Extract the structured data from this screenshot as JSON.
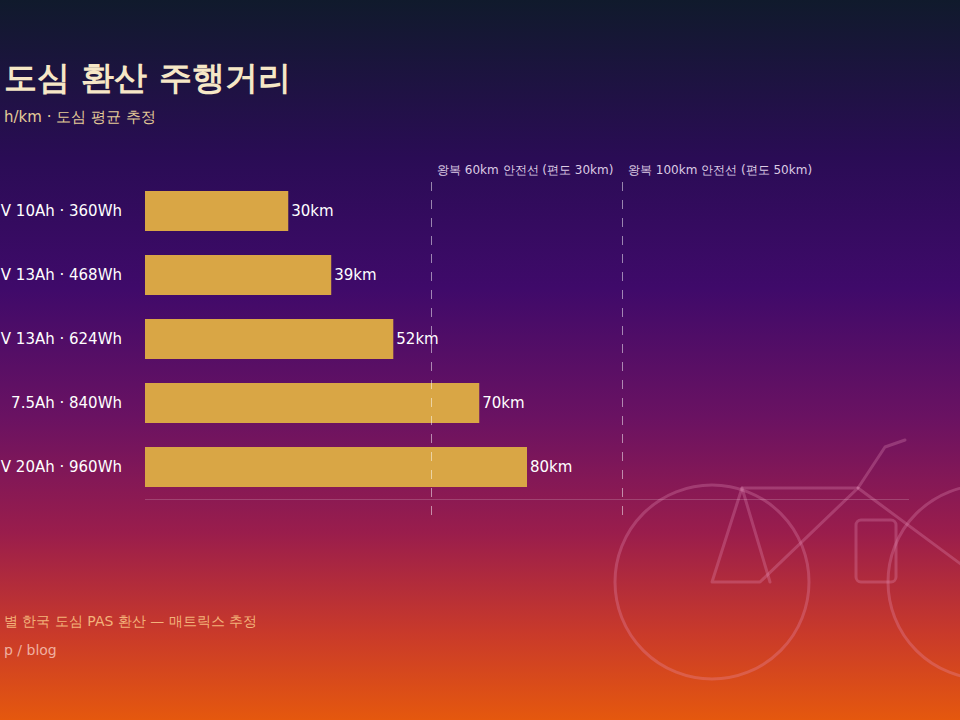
{
  "chart_data": {
    "type": "bar",
    "orientation": "horizontal",
    "title": "도심 환산 주행거리",
    "subtitle": "h/km · 도심 평균 추정",
    "categories": [
      "V 10Ah · 360Wh",
      "V 13Ah · 468Wh",
      "V 13Ah · 624Wh",
      "7.5Ah · 840Wh",
      "V 20Ah · 960Wh"
    ],
    "values": [
      30,
      39,
      52,
      70,
      80
    ],
    "value_labels": [
      "30km",
      "39km",
      "52km",
      "70km",
      "80km"
    ],
    "data_labels": true,
    "color": "#d9a645",
    "xlim": [
      0,
      160
    ],
    "tick_labels": "y",
    "grid": false,
    "reference_lines": [
      {
        "x": 60,
        "text": "왕복 60km 안전선 (편도 30km)"
      },
      {
        "x": 100,
        "text": "왕복 100km 안전선 (편도 50km)"
      }
    ],
    "footer": [
      "별 한국 도심 PAS 환산 — 매트릭스 추정",
      "p / blog"
    ]
  }
}
